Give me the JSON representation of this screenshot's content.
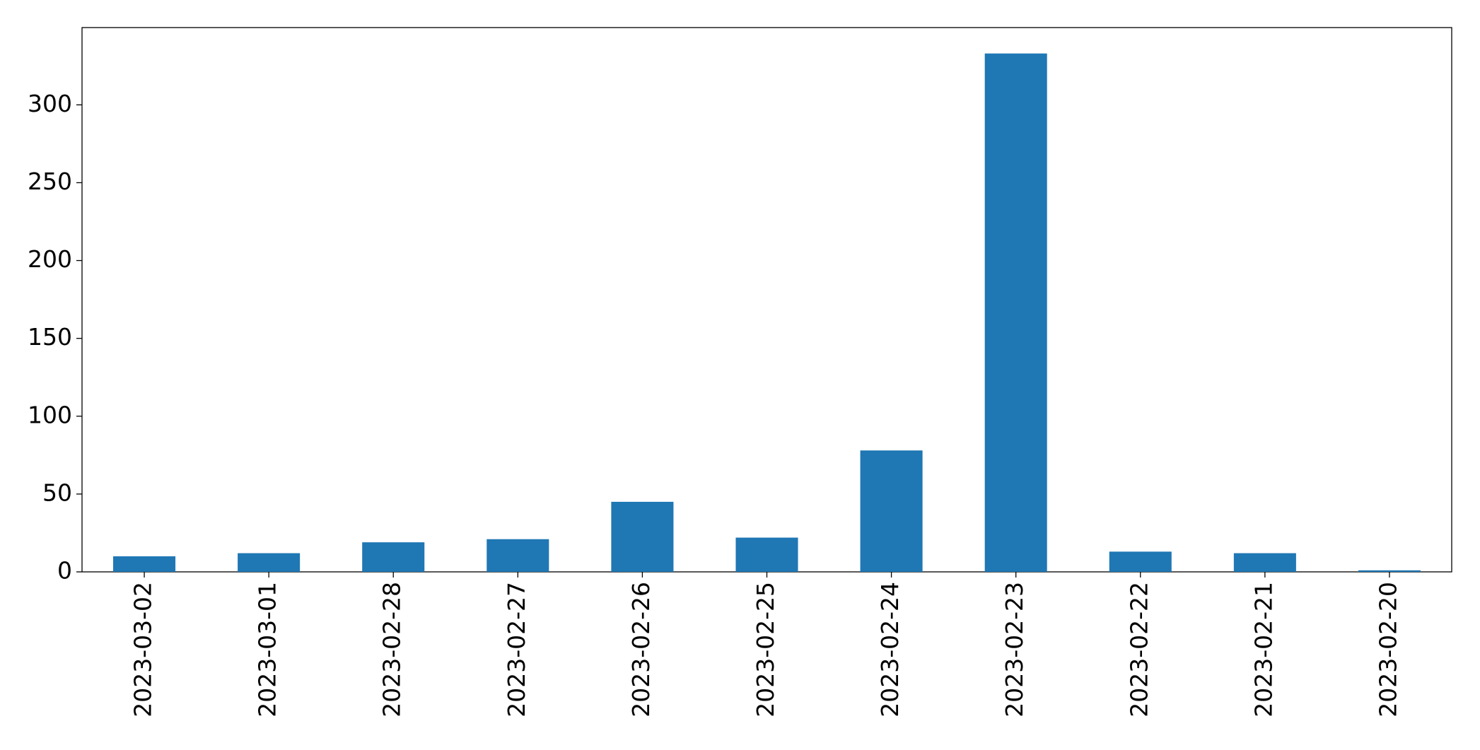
{
  "chart_data": {
    "type": "bar",
    "categories": [
      "2023-03-02",
      "2023-03-01",
      "2023-02-28",
      "2023-02-27",
      "2023-02-26",
      "2023-02-25",
      "2023-02-24",
      "2023-02-23",
      "2023-02-22",
      "2023-02-21",
      "2023-02-20"
    ],
    "values": [
      10,
      12,
      19,
      21,
      45,
      22,
      78,
      333,
      13,
      12,
      1
    ],
    "color": "#1f77b4",
    "ylim": [
      0,
      349.65
    ],
    "yticks": [
      0,
      50,
      100,
      150,
      200,
      250,
      300
    ],
    "grid": false
  }
}
